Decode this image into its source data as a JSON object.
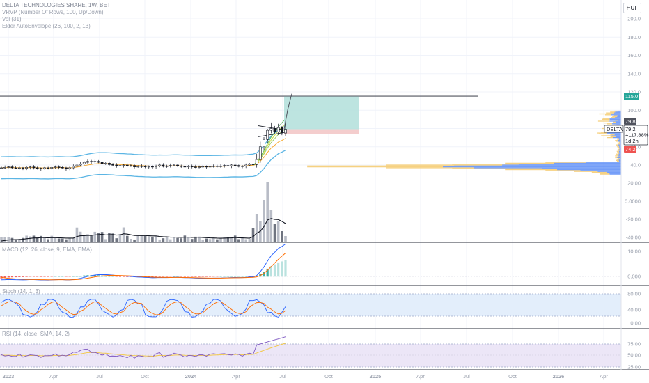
{
  "header": {
    "title": "DELTA TECHNOLOGIES SHARE, 1W, BET",
    "indicators": [
      "VRVP (Number Of Rows, 100, Up/Down)",
      "Vol (31)",
      "Elder AutoEnvelope (26, 100, 2, 13)"
    ],
    "currency": "HUF"
  },
  "price_badges": {
    "target": "115.0",
    "high": "79.8",
    "symbol": "DELTA",
    "last": "79.2",
    "change": "+117.88%",
    "countdown": "1d 2h",
    "low": "74.2"
  },
  "panes": {
    "macd": "MACD (12, 26, close, 9, EMA, EMA)",
    "stoch": "Stoch (14, 1, 3)",
    "rsi": "RSI (14, close, SMA, 14, 2)"
  },
  "colors": {
    "up": "#26a69a",
    "down": "#ef5350",
    "envelope": "#5bb5e4",
    "accent_orange": "#f7a21b",
    "vrvp_up": "#5b8cf7",
    "vrvp_down": "#f5c96b",
    "target_zone": "#b2dfdb",
    "stop_zone": "#f3c8c8"
  },
  "chart_data": [
    {
      "type": "candlestick",
      "title": "DELTA TECHNOLOGIES SHARE, 1W, BET",
      "currency": "HUF",
      "y_ticks": [
        40,
        60,
        80,
        100,
        120,
        140,
        160,
        180,
        200
      ],
      "x_ticks": [
        "2023",
        "Apr",
        "Jul",
        "Oct",
        "2024",
        "Apr",
        "Jul",
        "Oct",
        "2025",
        "Apr",
        "Jul",
        "Oct",
        "2026",
        "Apr"
      ],
      "price_path": [
        37,
        37.5,
        38,
        37,
        36.5,
        37,
        36.5,
        37.5,
        38,
        37,
        36.5,
        36,
        37,
        36.5,
        37.5,
        38,
        37.5,
        37,
        36,
        37,
        38.5,
        40,
        41,
        43,
        44,
        43.5,
        44,
        43,
        41.5,
        42,
        40.5,
        40,
        39,
        39.5,
        40,
        39,
        39.5,
        38,
        38.5,
        39,
        38,
        38.5,
        38,
        39,
        40,
        38.5,
        39,
        39.5,
        40,
        39,
        38.5,
        38,
        39,
        38,
        37.5,
        38,
        38.5,
        38,
        38.5,
        39,
        38.5,
        39,
        39.5,
        39,
        40,
        39.5,
        38.5,
        39,
        40,
        41,
        40.5,
        46,
        60,
        68,
        78,
        80,
        76,
        81,
        75,
        79.2
      ],
      "target_level": 115.0,
      "entry_level": 79.2,
      "stop_level": 74.2
    },
    {
      "type": "bar",
      "name": "Vol",
      "y_ticks": [
        "-40.00",
        "-20.00",
        "0.0000",
        "20.00"
      ]
    },
    {
      "type": "line",
      "name": "MACD",
      "y_ticks": [
        "0.000",
        "10.00"
      ]
    },
    {
      "type": "line",
      "name": "Stoch",
      "y_ticks": [
        "0.00",
        "40.00",
        "80.00"
      ]
    },
    {
      "type": "line",
      "name": "RSI",
      "y_ticks": [
        "25.00",
        "50.00",
        "75.00"
      ]
    }
  ]
}
